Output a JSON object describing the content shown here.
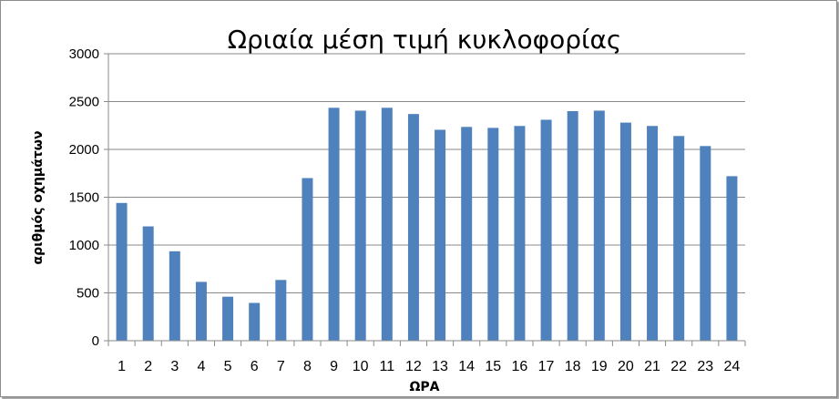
{
  "chart_data": {
    "type": "bar",
    "title": "Ωριαία μέση τιμή κυκλοφορίας",
    "xlabel": "ΩΡΑ",
    "ylabel": "αριθμός οχημάτων",
    "categories": [
      "1",
      "2",
      "3",
      "4",
      "5",
      "6",
      "7",
      "8",
      "9",
      "10",
      "11",
      "12",
      "13",
      "14",
      "15",
      "16",
      "17",
      "18",
      "19",
      "20",
      "21",
      "22",
      "23",
      "24"
    ],
    "values": [
      1440,
      1195,
      935,
      615,
      460,
      395,
      635,
      1700,
      2435,
      2405,
      2435,
      2370,
      2205,
      2235,
      2225,
      2245,
      2310,
      2400,
      2405,
      2280,
      2245,
      2140,
      2035,
      1720
    ],
    "ylim": [
      0,
      3000
    ],
    "yticks": [
      "0",
      "500",
      "1000",
      "1500",
      "2000",
      "2500",
      "3000"
    ],
    "grid": true,
    "legend": "none",
    "colors": {
      "bar": "#4f81bd",
      "grid": "#8a8a8a"
    }
  }
}
